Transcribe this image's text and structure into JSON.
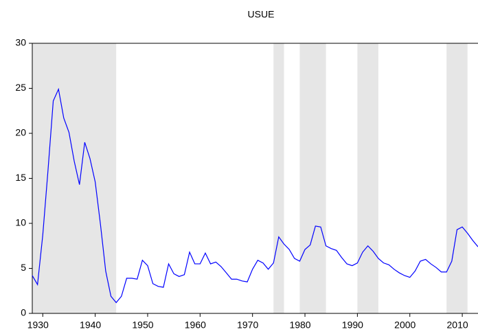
{
  "chart_data": {
    "type": "line",
    "title": "USUE",
    "x": [
      1928,
      1929,
      1930,
      1931,
      1932,
      1933,
      1934,
      1935,
      1936,
      1937,
      1938,
      1939,
      1940,
      1941,
      1942,
      1943,
      1944,
      1945,
      1946,
      1947,
      1948,
      1949,
      1950,
      1951,
      1952,
      1953,
      1954,
      1955,
      1956,
      1957,
      1958,
      1959,
      1960,
      1961,
      1962,
      1963,
      1964,
      1965,
      1966,
      1967,
      1968,
      1969,
      1970,
      1971,
      1972,
      1973,
      1974,
      1975,
      1976,
      1977,
      1978,
      1979,
      1980,
      1981,
      1982,
      1983,
      1984,
      1985,
      1986,
      1987,
      1988,
      1989,
      1990,
      1991,
      1992,
      1993,
      1994,
      1995,
      1996,
      1997,
      1998,
      1999,
      2000,
      2001,
      2002,
      2003,
      2004,
      2005,
      2006,
      2007,
      2008,
      2009,
      2010,
      2011,
      2012,
      2013
    ],
    "series": [
      {
        "name": "USUE",
        "color": "#0000ff",
        "values": [
          4.2,
          3.2,
          8.7,
          15.9,
          23.6,
          24.9,
          21.7,
          20.1,
          16.9,
          14.3,
          19.0,
          17.2,
          14.6,
          9.9,
          4.7,
          1.9,
          1.2,
          1.9,
          3.9,
          3.9,
          3.8,
          5.9,
          5.3,
          3.3,
          3.0,
          2.9,
          5.5,
          4.4,
          4.1,
          4.3,
          6.8,
          5.5,
          5.5,
          6.7,
          5.5,
          5.7,
          5.2,
          4.5,
          3.8,
          3.8,
          3.6,
          3.5,
          4.9,
          5.9,
          5.6,
          4.9,
          5.6,
          8.5,
          7.7,
          7.1,
          6.1,
          5.8,
          7.1,
          7.6,
          9.7,
          9.6,
          7.5,
          7.2,
          7.0,
          6.2,
          5.5,
          5.3,
          5.6,
          6.8,
          7.5,
          6.9,
          6.1,
          5.6,
          5.4,
          4.9,
          4.5,
          4.2,
          4.0,
          4.7,
          5.8,
          6.0,
          5.5,
          5.1,
          4.6,
          4.6,
          5.8,
          9.3,
          9.6,
          8.9,
          8.1,
          7.4
        ]
      }
    ],
    "shaded_regions": [
      [
        1928,
        1944
      ],
      [
        1974,
        1976
      ],
      [
        1979,
        1984
      ],
      [
        1990,
        1994
      ],
      [
        2007,
        2011
      ]
    ],
    "shade_color": "#e6e6e6",
    "xlim": [
      1928,
      2013
    ],
    "xticks": [
      1930,
      1940,
      1950,
      1960,
      1970,
      1980,
      1990,
      2000,
      2010
    ],
    "ylim": [
      0,
      30
    ],
    "yticks": [
      0,
      5,
      10,
      15,
      20,
      25,
      30
    ]
  }
}
